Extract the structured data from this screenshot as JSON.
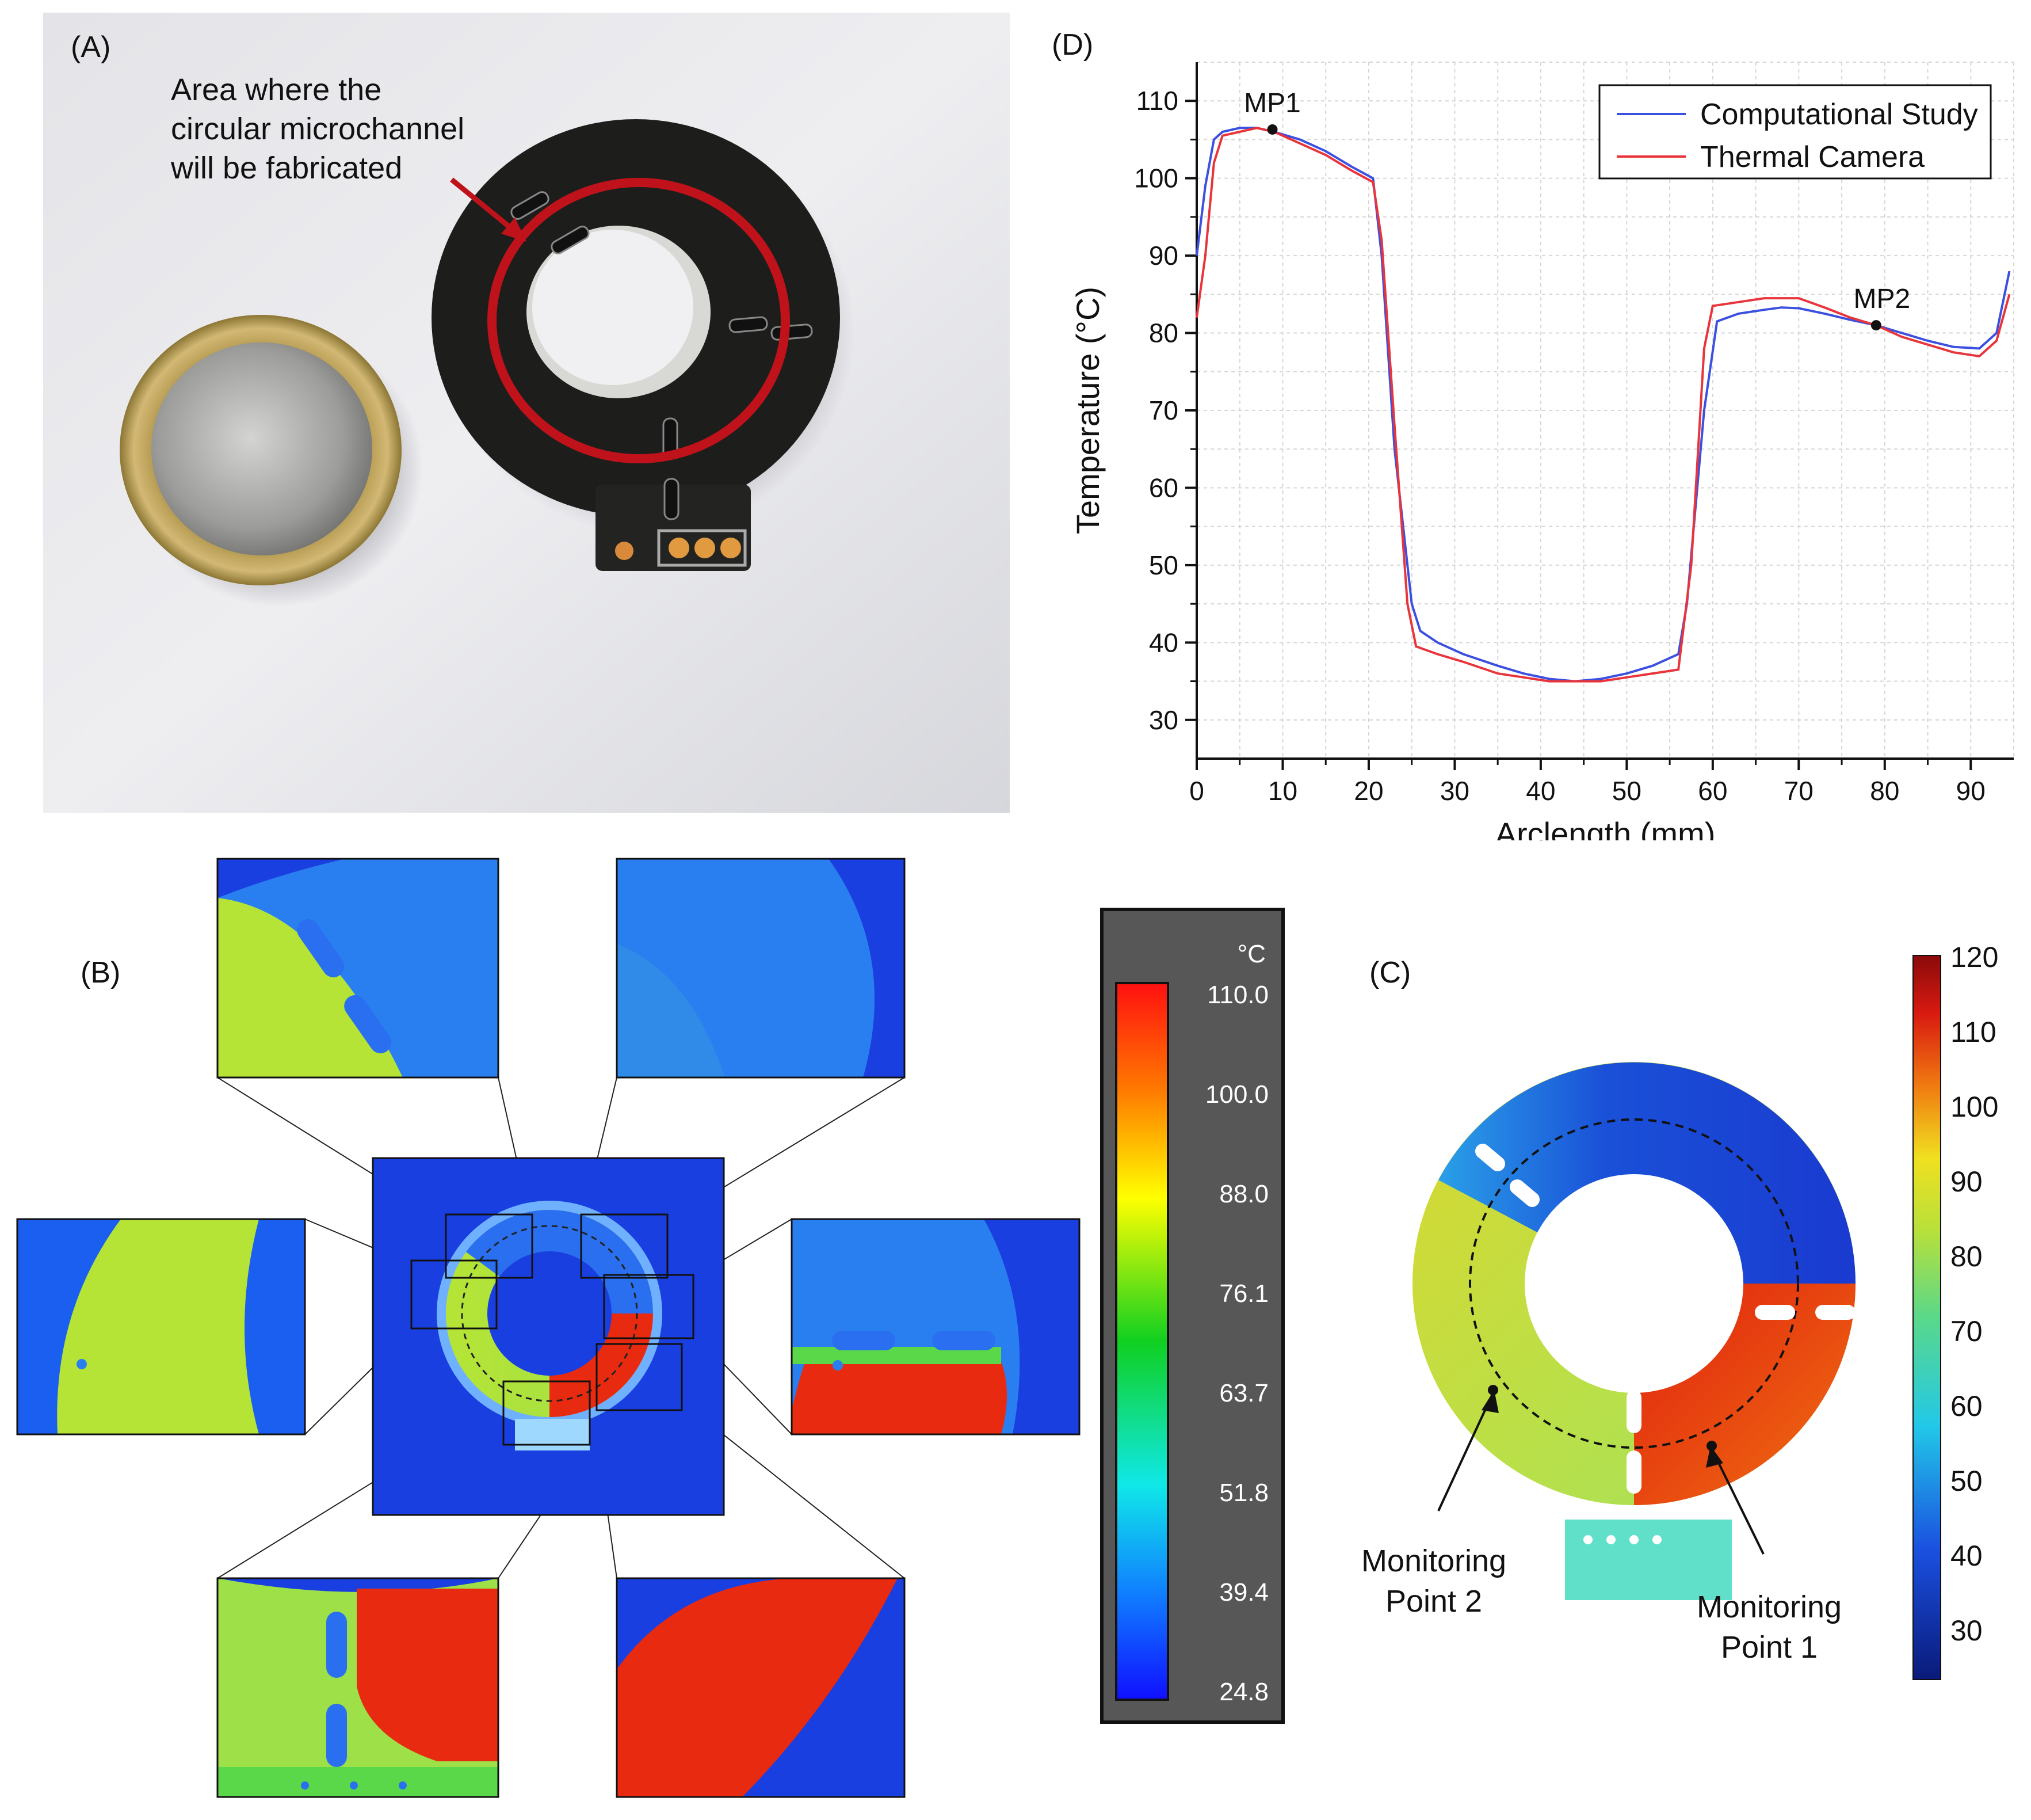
{
  "panel_a": {
    "label": "(A)",
    "annotation_lines": [
      "Area where the",
      "circular microchannel",
      "will be fabricated"
    ]
  },
  "panel_b": {
    "label": "(B)",
    "colorbar": {
      "unit": "°C",
      "ticks": [
        "110.0",
        "100.0",
        "88.0",
        "76.1",
        "63.7",
        "51.8",
        "39.4",
        "24.8"
      ]
    }
  },
  "panel_c": {
    "label": "(C)",
    "monitoring_point_2": [
      "Monitoring",
      "Point 2"
    ],
    "monitoring_point_1": [
      "Monitoring",
      "Point 1"
    ],
    "colorbar_ticks": [
      "120",
      "110",
      "100",
      "90",
      "80",
      "70",
      "60",
      "50",
      "40",
      "30"
    ]
  },
  "colors": {
    "computational": "#3b4fe0",
    "thermal": "#e8343a",
    "ring_red": "#c0121a",
    "field_blue": "#1a3fe0",
    "field_red": "#e82a10",
    "field_green": "#a6e03a"
  },
  "chart_data": {
    "label": "(D)",
    "type": "line",
    "xlabel": "Arclength (mm)",
    "ylabel": "Temperature (°C)",
    "xlim": [
      0,
      95
    ],
    "ylim": [
      25,
      115
    ],
    "xticks": [
      0,
      10,
      20,
      30,
      40,
      50,
      60,
      70,
      80,
      90
    ],
    "yticks": [
      30,
      40,
      50,
      60,
      70,
      80,
      90,
      100,
      110
    ],
    "grid": true,
    "legend_position": "top-right",
    "series": [
      {
        "name": "Computational Study",
        "x": [
          0,
          1,
          2,
          3,
          5,
          7,
          9,
          12,
          15,
          18,
          20.5,
          21.5,
          23,
          25,
          26,
          28,
          31,
          35,
          38,
          41,
          44,
          47,
          50,
          53,
          56,
          57,
          59,
          60.5,
          63,
          66,
          68,
          70,
          73,
          76,
          79,
          82,
          85,
          88,
          91,
          93,
          94.5
        ],
        "y": [
          90,
          99,
          105,
          106,
          106.5,
          106.5,
          106,
          105,
          103.5,
          101.5,
          100,
          90,
          65,
          45,
          41.5,
          40,
          38.5,
          37,
          36,
          35.3,
          35,
          35.3,
          36,
          37,
          38.5,
          45,
          70,
          81.5,
          82.5,
          83,
          83.3,
          83.2,
          82.5,
          81.7,
          81,
          80,
          79,
          78.2,
          78,
          80,
          88
        ]
      },
      {
        "name": "Thermal Camera",
        "x": [
          0,
          1,
          2,
          3,
          5,
          7,
          9,
          12,
          15,
          18,
          20.5,
          21.5,
          23,
          24.5,
          25.5,
          28,
          31,
          35,
          38,
          41,
          44,
          47,
          50,
          53,
          56,
          57.5,
          59,
          60,
          63,
          66,
          68,
          70,
          73,
          76,
          79,
          82,
          85,
          88,
          91,
          93,
          94.5
        ],
        "y": [
          82,
          90,
          102,
          105.5,
          106,
          106.5,
          106,
          104.5,
          103,
          101,
          99.5,
          92,
          68,
          45,
          39.5,
          38.5,
          37.5,
          36,
          35.5,
          35,
          35,
          35,
          35.5,
          36,
          36.5,
          50,
          78,
          83.5,
          84,
          84.5,
          84.5,
          84.5,
          83.3,
          82,
          81,
          79.5,
          78.5,
          77.5,
          77,
          79,
          85
        ]
      }
    ],
    "annotations": [
      {
        "text": "MP1",
        "x": 8.8,
        "y": 106.3
      },
      {
        "text": "MP2",
        "x": 79,
        "y": 81
      }
    ]
  }
}
